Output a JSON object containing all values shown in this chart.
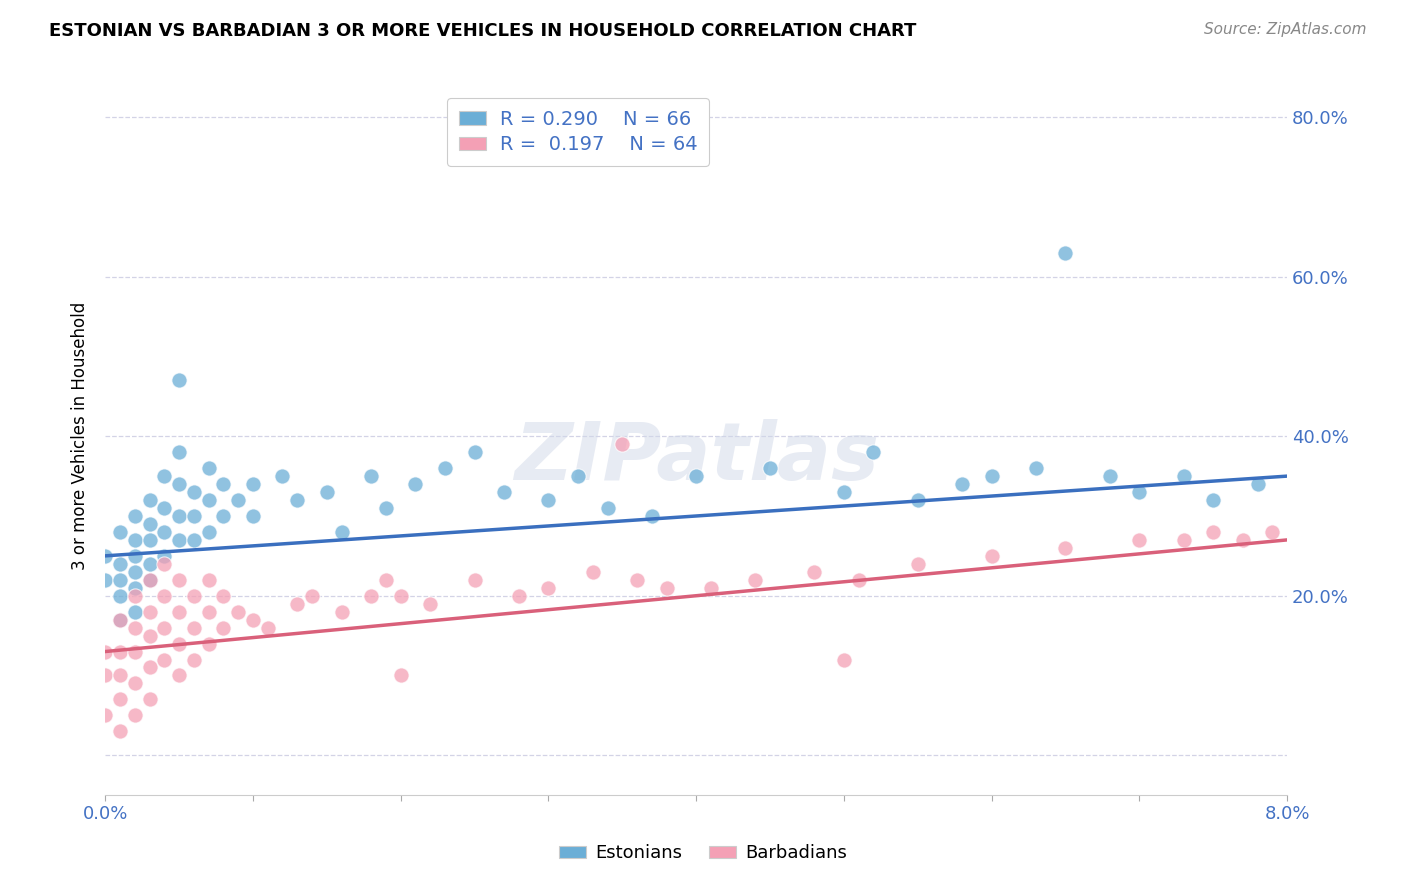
{
  "title": "ESTONIAN VS BARBADIAN 3 OR MORE VEHICLES IN HOUSEHOLD CORRELATION CHART",
  "source": "Source: ZipAtlas.com",
  "ylabel": "3 or more Vehicles in Household",
  "xmin": 0.0,
  "xmax": 0.08,
  "ymin": -0.05,
  "ymax": 0.85,
  "watermark": "ZIPatlas",
  "color_blue": "#6baed6",
  "color_pink": "#f4a0b5",
  "trend_blue": "#3a6fbf",
  "trend_pink": "#d9607a",
  "estonians_x": [
    0.0,
    0.0,
    0.001,
    0.001,
    0.001,
    0.001,
    0.001,
    0.002,
    0.002,
    0.002,
    0.002,
    0.002,
    0.002,
    0.003,
    0.003,
    0.003,
    0.003,
    0.003,
    0.004,
    0.004,
    0.004,
    0.004,
    0.005,
    0.005,
    0.005,
    0.005,
    0.005,
    0.006,
    0.006,
    0.006,
    0.007,
    0.007,
    0.007,
    0.008,
    0.008,
    0.009,
    0.01,
    0.01,
    0.012,
    0.013,
    0.015,
    0.016,
    0.018,
    0.019,
    0.021,
    0.023,
    0.025,
    0.027,
    0.03,
    0.032,
    0.034,
    0.037,
    0.04,
    0.045,
    0.05,
    0.052,
    0.055,
    0.058,
    0.06,
    0.063,
    0.065,
    0.068,
    0.07,
    0.073,
    0.075,
    0.078
  ],
  "estonians_y": [
    0.25,
    0.22,
    0.28,
    0.24,
    0.22,
    0.2,
    0.17,
    0.3,
    0.27,
    0.25,
    0.23,
    0.21,
    0.18,
    0.32,
    0.29,
    0.27,
    0.24,
    0.22,
    0.35,
    0.31,
    0.28,
    0.25,
    0.47,
    0.38,
    0.34,
    0.3,
    0.27,
    0.33,
    0.3,
    0.27,
    0.36,
    0.32,
    0.28,
    0.34,
    0.3,
    0.32,
    0.34,
    0.3,
    0.35,
    0.32,
    0.33,
    0.28,
    0.35,
    0.31,
    0.34,
    0.36,
    0.38,
    0.33,
    0.32,
    0.35,
    0.31,
    0.3,
    0.35,
    0.36,
    0.33,
    0.38,
    0.32,
    0.34,
    0.35,
    0.36,
    0.63,
    0.35,
    0.33,
    0.35,
    0.32,
    0.34
  ],
  "barbadians_x": [
    0.0,
    0.0,
    0.0,
    0.001,
    0.001,
    0.001,
    0.001,
    0.001,
    0.002,
    0.002,
    0.002,
    0.002,
    0.002,
    0.003,
    0.003,
    0.003,
    0.003,
    0.003,
    0.004,
    0.004,
    0.004,
    0.004,
    0.005,
    0.005,
    0.005,
    0.005,
    0.006,
    0.006,
    0.006,
    0.007,
    0.007,
    0.007,
    0.008,
    0.008,
    0.009,
    0.01,
    0.011,
    0.013,
    0.014,
    0.016,
    0.018,
    0.02,
    0.022,
    0.025,
    0.028,
    0.03,
    0.033,
    0.036,
    0.038,
    0.041,
    0.044,
    0.048,
    0.051,
    0.055,
    0.06,
    0.065,
    0.07,
    0.073,
    0.075,
    0.077,
    0.079,
    0.035,
    0.05,
    0.02,
    0.019
  ],
  "barbadians_y": [
    0.13,
    0.1,
    0.05,
    0.17,
    0.13,
    0.1,
    0.07,
    0.03,
    0.2,
    0.16,
    0.13,
    0.09,
    0.05,
    0.22,
    0.18,
    0.15,
    0.11,
    0.07,
    0.24,
    0.2,
    0.16,
    0.12,
    0.22,
    0.18,
    0.14,
    0.1,
    0.2,
    0.16,
    0.12,
    0.22,
    0.18,
    0.14,
    0.2,
    0.16,
    0.18,
    0.17,
    0.16,
    0.19,
    0.2,
    0.18,
    0.2,
    0.1,
    0.19,
    0.22,
    0.2,
    0.21,
    0.23,
    0.22,
    0.21,
    0.21,
    0.22,
    0.23,
    0.22,
    0.24,
    0.25,
    0.26,
    0.27,
    0.27,
    0.28,
    0.27,
    0.28,
    0.39,
    0.12,
    0.2,
    0.22
  ]
}
